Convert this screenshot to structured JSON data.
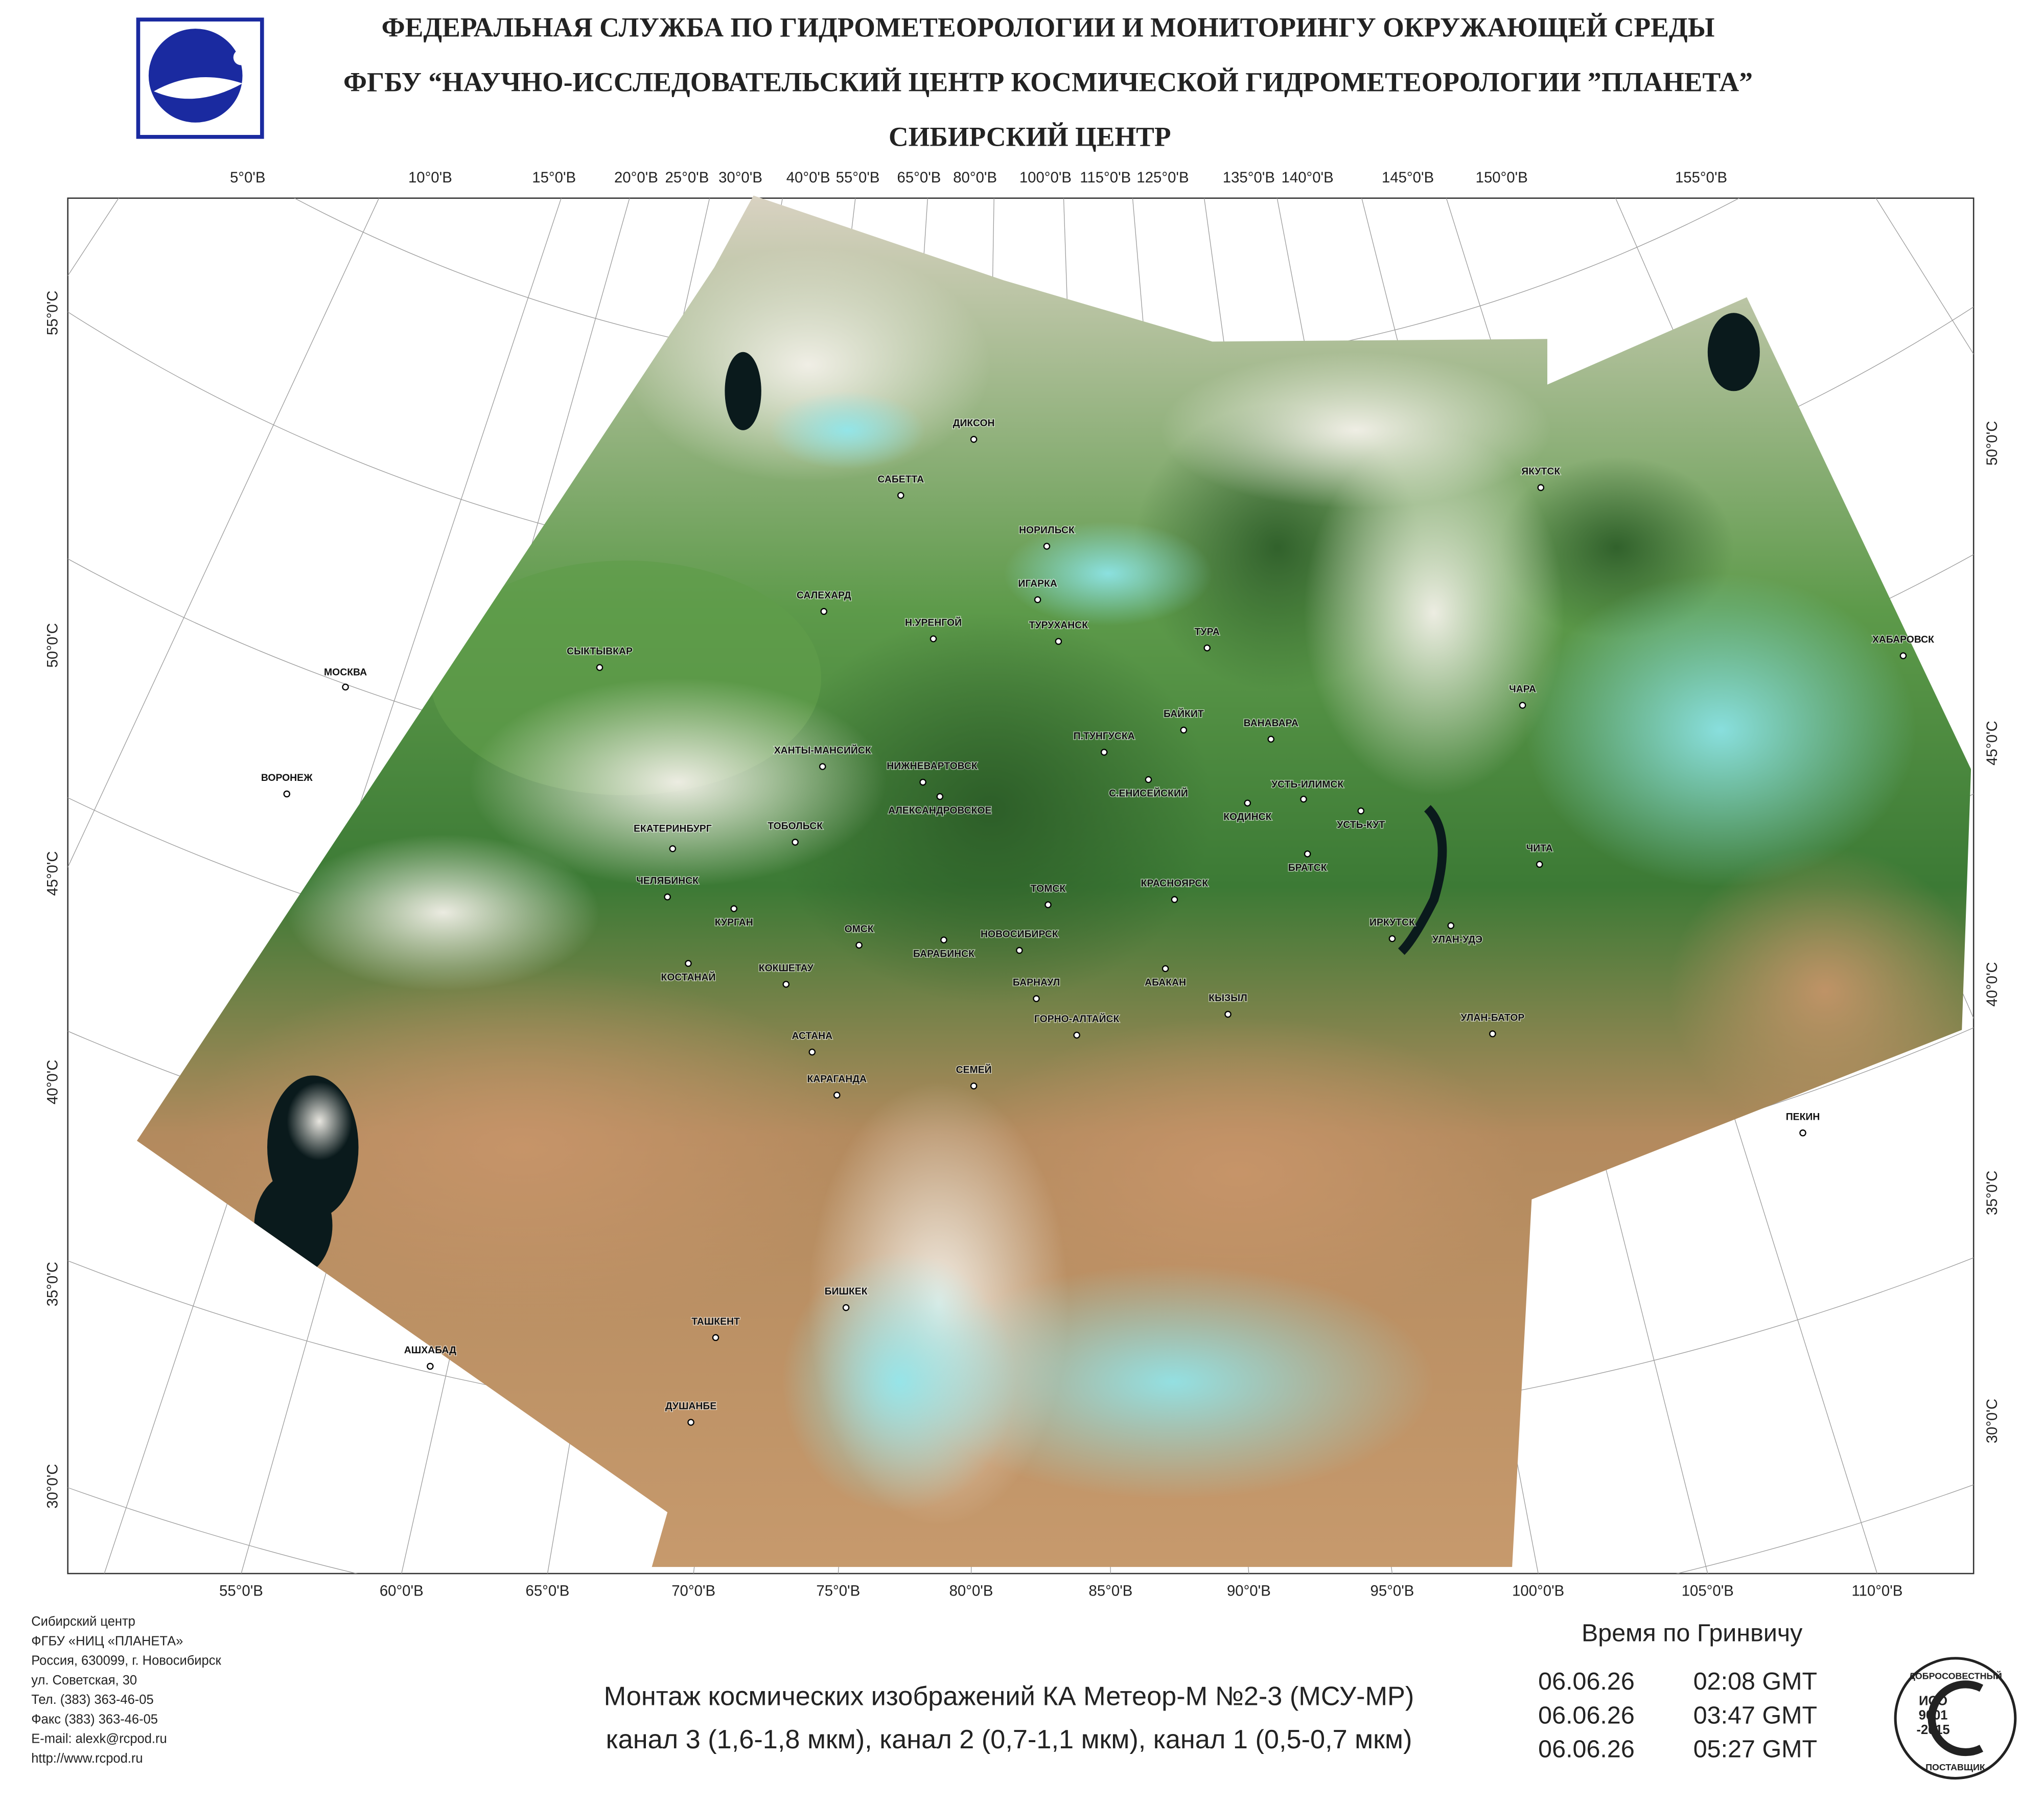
{
  "header": {
    "title_lines": [
      "ФЕДЕРАЛЬНАЯ СЛУЖБА ПО ГИДРОМЕТЕОРОЛОГИИ И МОНИТОРИНГУ ОКРУЖАЮЩЕЙ СРЕДЫ",
      "ФГБУ “НАУЧНО-ИССЛЕДОВАТЕЛЬСКИЙ ЦЕНТР КОСМИЧЕСКОЙ ГИДРОМЕТЕОРОЛОГИИ ”ПЛАНЕТА”",
      "СИБИРСКИЙ  ЦЕНТР"
    ]
  },
  "map": {
    "top_labels": [
      "5°0'В",
      "10°0'В",
      "15°0'В",
      "20°0'В",
      "25°0'В",
      "30°0'В",
      "40°0'В",
      "55°0'В",
      "65°0'В",
      "80°0'В",
      "100°0'В",
      "115°0'В",
      "125°0'В",
      "135°0'В",
      "140°0'В",
      "145°0'В",
      "150°0'В",
      "155°0'В"
    ],
    "bottom_labels": [
      "55°0'В",
      "60°0'В",
      "65°0'В",
      "70°0'В",
      "75°0'В",
      "80°0'В",
      "85°0'В",
      "90°0'В",
      "95°0'В",
      "100°0'В",
      "105°0'В",
      "110°0'В"
    ],
    "left_labels": [
      "55°0'С",
      "50°0'С",
      "45°0'С",
      "40°0'С",
      "35°0'С",
      "30°0'С"
    ],
    "right_labels": [
      "50°0'С",
      "45°0'С",
      "40°0'С",
      "35°0'С",
      "30°0'С"
    ],
    "cities": [
      "ДИКСОН",
      "САБЕТТА",
      "НОРИЛЬСК",
      "ИГАРКА",
      "САЛЕХАРД",
      "Н.УРЕНГОЙ",
      "ТУРУХАНСК",
      "ТУРА",
      "СЫКТЫВКАР",
      "МОСКВА",
      "ЯКУТСК",
      "ХАБАРОВСК",
      "ЧАРА",
      "БАЙКИТ",
      "ВАНАВАРА",
      "П.ТУНГУСКА",
      "ХАНТЫ-МАНСИЙСК",
      "НИЖНЕВАРТОВСК",
      "ВОРОНЕЖ",
      "С.ЕНИСЕЙСКИЙ",
      "УСТЬ-ИЛИМСК",
      "КОДИНСК",
      "АЛЕКСАНДРОВСКОЕ",
      "УСТЬ-КУТ",
      "ЕКАТЕРИНБУРГ",
      "ТОБОЛЬСК",
      "БРАТСК",
      "ЧИТА",
      "ЧЕЛЯБИНСК",
      "КРАСНОЯРСК",
      "ТОМСК",
      "КУРГАН",
      "ОМСК",
      "НОВОСИБИРСК",
      "БАРАБИНСК",
      "ИРКУТСК",
      "УЛАН-УДЭ",
      "КОСТАНАЙ",
      "КОКШЕТАУ",
      "АБАКАН",
      "БАРНАУЛ",
      "КЫЗЫЛ",
      "ГОРНО-АЛТАЙСК",
      "УЛАН-БАТОР",
      "АСТАНА",
      "КАРАГАНДА",
      "СЕМЕЙ",
      "ПЕКИН",
      "БИШКЕК",
      "ТАШКЕНТ",
      "АШХАБАД",
      "ДУШАНБЕ"
    ]
  },
  "footer": {
    "address": [
      "Сибирский центр",
      "ФГБУ «НИЦ «ПЛАНЕТА»",
      "Россия, 630099, г. Новосибирск",
      "ул. Советская, 30",
      "Тел. (383) 363-46-05",
      "Факс (383) 363-46-05",
      "E-mail: alexk@rcpod.ru",
      "http://www.rcpod.ru"
    ],
    "caption": [
      "Монтаж космических изображений КА Метеор-М №2-3 (МСУ-МР)",
      "канал 3 (1,6-1,8 мкм), канал 2 (0,7-1,1 мкм), канал 1 (0,5-0,7 мкм)"
    ],
    "time_title": "Время по Гринвичу",
    "times": [
      [
        "06.06.26",
        "02:08 GMT"
      ],
      [
        "06.06.26",
        "03:47 GMT"
      ],
      [
        "06.06.26",
        "05:27 GMT"
      ]
    ],
    "iso": {
      "top": "ДОБРОСОВЕСТНЫЙ",
      "mark": [
        "ИСО",
        "9001",
        "-2015"
      ],
      "bottom": "ПОСТАВЩИК"
    }
  }
}
